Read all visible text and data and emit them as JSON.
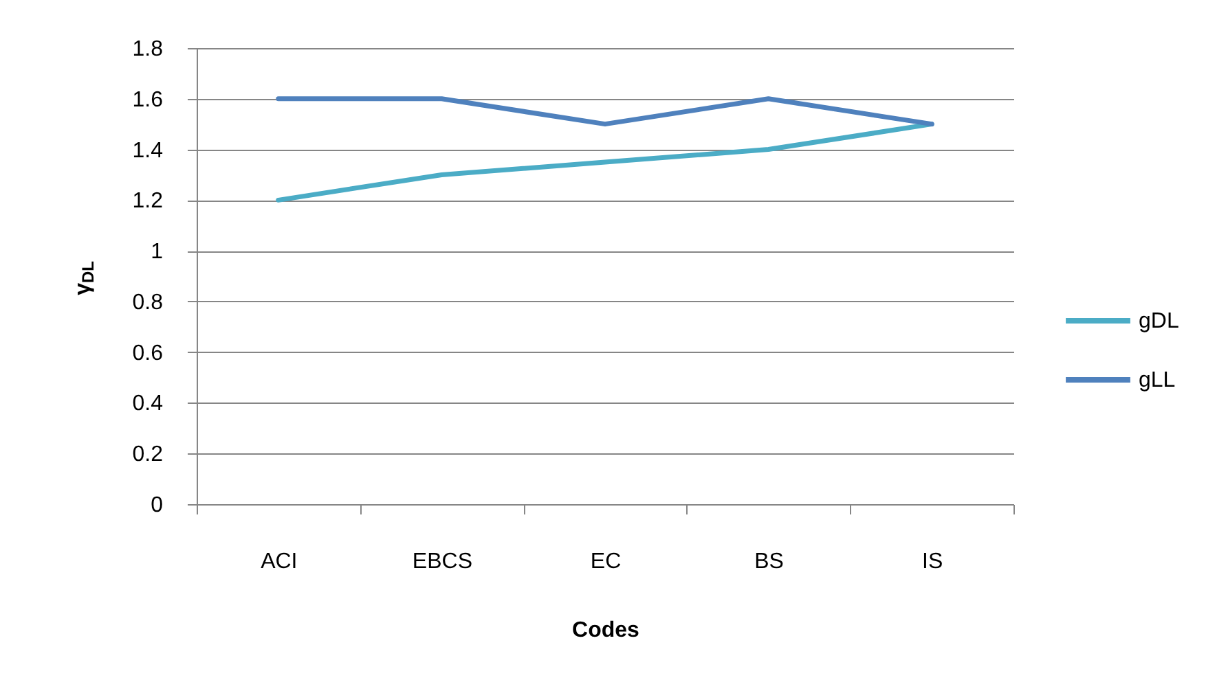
{
  "chart_data": {
    "type": "line",
    "xlabel": "Codes",
    "ylabel": "γ$_{DL}$",
    "categories": [
      "ACI",
      "EBCS",
      "EC",
      "BS",
      "IS"
    ],
    "series": [
      {
        "name": "gDL",
        "color": "#4bacc6",
        "values": [
          1.2,
          1.3,
          1.35,
          1.4,
          1.5
        ]
      },
      {
        "name": "gLL",
        "color": "#4f81bd",
        "values": [
          1.6,
          1.6,
          1.5,
          1.6,
          1.5
        ]
      }
    ],
    "ylim": [
      0,
      1.8
    ],
    "yticks": [
      0,
      0.2,
      0.4,
      0.6,
      0.8,
      1,
      1.2,
      1.4,
      1.6,
      1.8
    ],
    "grid": "y",
    "legend": "right",
    "marker": "none",
    "line_style": "solid"
  }
}
